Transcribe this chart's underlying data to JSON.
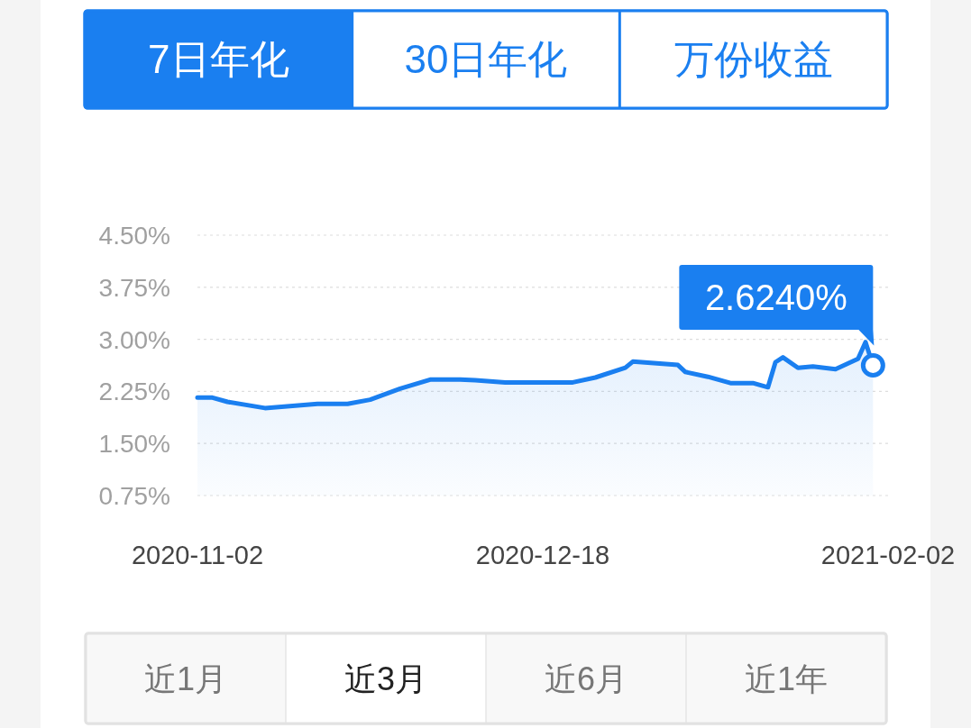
{
  "chart_data": [
    {
      "type": "other",
      "categories": [
        "7日年化",
        "30日年化",
        "万份收益"
      ],
      "colors": [
        "#1a7ff0",
        "#ffffff",
        "#ffffff"
      ],
      "color": "#1a7ff0"
    },
    {
      "type": "area",
      "x": [
        "2020-11-02",
        "2020-11-04",
        "2020-11-06",
        "2020-11-11",
        "2020-11-18",
        "2020-11-22",
        "2020-11-25",
        "2020-11-29",
        "2020-12-03",
        "2020-12-07",
        "2020-12-09",
        "2020-12-13",
        "2020-12-22",
        "2020-12-25",
        "2020-12-29",
        "2020-12-30",
        "2021-01-05",
        "2021-01-06",
        "2021-01-09",
        "2021-01-12",
        "2021-01-15",
        "2021-01-17",
        "2021-01-18",
        "2021-01-19",
        "2021-01-21",
        "2021-01-23",
        "2021-01-26",
        "2021-01-29",
        "2021-01-30",
        "2021-01-31"
      ],
      "series": [
        {
          "color": "#1a7ff0",
          "values": [
            2.16,
            2.16,
            2.1,
            2.01,
            2.07,
            2.07,
            2.13,
            2.29,
            2.42,
            2.42,
            2.41,
            2.38,
            2.38,
            2.45,
            2.59,
            2.68,
            2.63,
            2.53,
            2.46,
            2.37,
            2.37,
            2.31,
            2.67,
            2.74,
            2.59,
            2.61,
            2.57,
            2.72,
            2.96,
            2.624
          ]
        }
      ],
      "xlim": [
        "2020-11-02",
        "2021-02-02"
      ],
      "xticks": [
        "2020-11-02",
        "2020-12-18",
        "2021-02-02"
      ],
      "ylim": [
        0.75,
        4.5
      ],
      "yticks": [
        {
          "value": 4.5,
          "label": "4.50%"
        },
        {
          "value": 3.75,
          "label": "3.75%"
        },
        {
          "value": 3.0,
          "label": "3.00%"
        },
        {
          "value": 2.25,
          "label": "2.25%"
        },
        {
          "value": 1.5,
          "label": "1.50%"
        },
        {
          "value": 0.75,
          "label": "0.75%"
        }
      ],
      "grid": "y",
      "annotations": [
        {
          "text": "2.6240%",
          "x": "2021-01-31",
          "y": 2.624
        }
      ]
    },
    {
      "type": "other",
      "categories": [
        "近1月",
        "近3月",
        "近6月",
        "近1年"
      ],
      "colors": [
        "#f8f8f8",
        "#ffffff",
        "#f8f8f8",
        "#f8f8f8"
      ]
    }
  ]
}
